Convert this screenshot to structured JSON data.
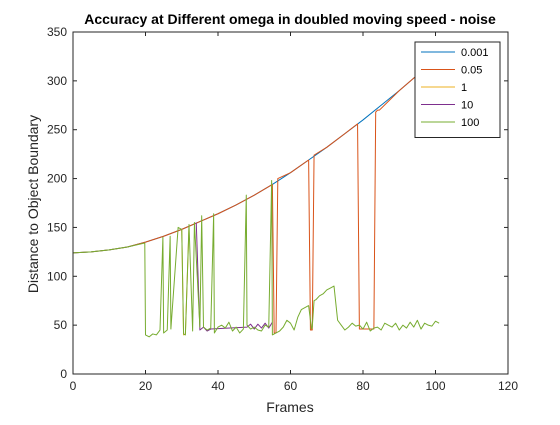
{
  "chart_data": {
    "type": "line",
    "title": "Accuracy at Different omega in doubled moving speed - noise",
    "xlabel": "Frames",
    "ylabel": "Distance to Object Boundary",
    "xlim": [
      0,
      120
    ],
    "ylim": [
      0,
      350
    ],
    "xticks": [
      0,
      20,
      40,
      60,
      80,
      100,
      120
    ],
    "yticks": [
      0,
      50,
      100,
      150,
      200,
      250,
      300,
      350
    ],
    "grid": false,
    "legend_position": "top-right",
    "series": [
      {
        "name": "0.001",
        "color": "#0072BD",
        "x": [
          0,
          5,
          10,
          15,
          20,
          25,
          30,
          35,
          40,
          45,
          50,
          55,
          60,
          65,
          70,
          75,
          80,
          85,
          90,
          95,
          100
        ],
        "y": [
          124,
          125,
          127,
          130,
          135,
          141,
          148,
          156,
          164,
          173,
          183,
          194,
          206,
          219,
          232,
          246,
          260,
          275,
          290,
          306,
          322
        ]
      },
      {
        "name": "0.05",
        "color": "#D95319",
        "x": [
          0,
          5,
          10,
          15,
          20,
          25,
          30,
          35,
          40,
          45,
          50,
          55,
          55.5,
          56,
          56.5,
          60,
          65,
          65.5,
          66,
          66.5,
          70,
          75,
          78.5,
          79,
          80,
          83,
          83.5,
          84,
          84.5,
          90,
          95,
          100
        ],
        "y": [
          124,
          125,
          127,
          130,
          135,
          141,
          148,
          156,
          164,
          173,
          183,
          194,
          42,
          42,
          200,
          206,
          219,
          45,
          45,
          224,
          232,
          246,
          256,
          46,
          46,
          46,
          268,
          270,
          270,
          290,
          306,
          322
        ]
      },
      {
        "name": "1",
        "color": "#EDB120",
        "x": [
          30,
          30.5,
          31,
          32
        ],
        "y": [
          148,
          40,
          41,
          150
        ]
      },
      {
        "name": "10",
        "color": "#7E2F8E",
        "x": [
          34,
          35,
          36,
          37,
          38,
          48,
          49,
          50,
          51,
          52,
          53,
          54,
          55
        ],
        "y": [
          155,
          45,
          48,
          44,
          46,
          48,
          51,
          46,
          51,
          47,
          52,
          47,
          53
        ]
      },
      {
        "name": "100",
        "color": "#77AC30",
        "x": [
          0,
          5,
          10,
          15,
          19.8,
          20,
          21,
          22,
          23,
          24,
          24.8,
          25,
          26,
          26.8,
          27,
          29,
          30,
          30.5,
          31,
          32,
          33,
          33.5,
          35,
          35.5,
          36,
          37,
          38,
          38.8,
          39,
          40,
          41,
          42,
          43,
          44,
          45,
          46,
          47,
          47.8,
          48,
          49,
          50,
          51,
          52,
          53,
          54,
          54.8,
          55,
          56,
          57,
          58,
          59,
          60,
          61,
          62,
          63,
          64,
          65,
          65.8,
          66,
          66.5,
          67,
          68,
          69,
          70,
          71,
          72,
          73,
          74,
          75,
          76,
          77,
          78,
          79,
          80,
          81,
          82,
          83,
          84,
          85,
          86,
          87,
          88,
          89,
          90,
          91,
          92,
          93,
          94,
          95,
          96,
          97,
          98,
          99,
          100,
          101
        ],
        "y": [
          124,
          125,
          127,
          130,
          134,
          40,
          38,
          41,
          40,
          45,
          140,
          42,
          45,
          141,
          46,
          150,
          148,
          41,
          40,
          153,
          44,
          155,
          48,
          162,
          48,
          45,
          47,
          164,
          42,
          48,
          50,
          47,
          53,
          44,
          48,
          42,
          46,
          183,
          50,
          46,
          48,
          45,
          44,
          50,
          48,
          198,
          40,
          42,
          44,
          48,
          55,
          52,
          45,
          58,
          66,
          68,
          70,
          46,
          48,
          75,
          76,
          80,
          82,
          86,
          88,
          90,
          55,
          50,
          45,
          48,
          52,
          49,
          50,
          46,
          53,
          44,
          47,
          48,
          45,
          52,
          50,
          48,
          52,
          45,
          50,
          47,
          53,
          48,
          55,
          46,
          52,
          50,
          49,
          54,
          52
        ]
      }
    ]
  }
}
